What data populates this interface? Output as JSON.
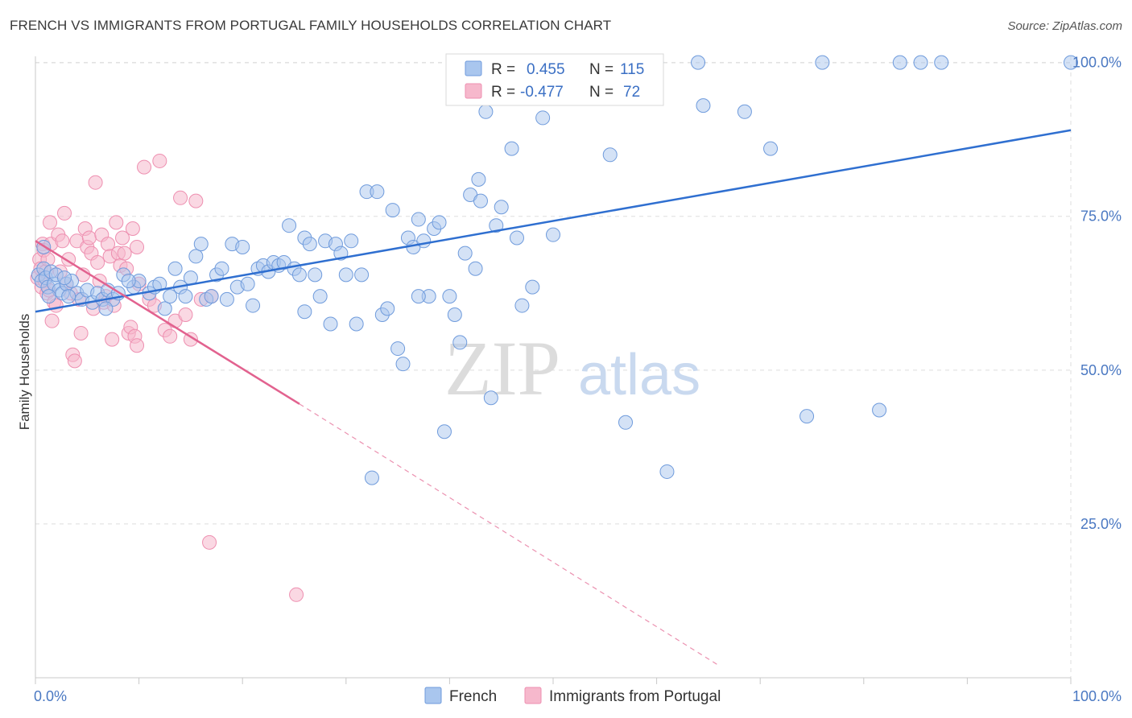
{
  "header": {
    "title": "FRENCH VS IMMIGRANTS FROM PORTUGAL FAMILY HOUSEHOLDS CORRELATION CHART",
    "source": "Source: ZipAtlas.com"
  },
  "watermark": {
    "zip": "ZIP",
    "atlas": "atlas"
  },
  "colors": {
    "french_fill": "#a9c6ee",
    "french_stroke": "#6f9bdc",
    "french_line": "#2f6fd0",
    "portugal_fill": "#f6b8cc",
    "portugal_stroke": "#ee8fb0",
    "portugal_line": "#e2628f",
    "tick_text": "#4a78c2",
    "grid": "#dedede"
  },
  "legend_box": {
    "rows": [
      {
        "r_label": "R =",
        "r_value": "0.455",
        "n_label": "N =",
        "n_value": "115"
      },
      {
        "r_label": "R =",
        "r_value": "-0.477",
        "n_label": "N =",
        "n_value": "72"
      }
    ]
  },
  "bottom_legend": [
    {
      "label": "French"
    },
    {
      "label": "Immigrants from Portugal"
    }
  ],
  "chart_data": {
    "type": "scatter",
    "title": "FRENCH VS IMMIGRANTS FROM PORTUGAL FAMILY HOUSEHOLDS CORRELATION CHART",
    "xlabel": "",
    "ylabel": "Family Households",
    "xlim": [
      0,
      100
    ],
    "ylim": [
      0,
      101
    ],
    "x_tick_labels": [
      "0.0%",
      "100.0%"
    ],
    "y_ticks": [
      25,
      50,
      75,
      100
    ],
    "y_tick_labels": [
      "25.0%",
      "50.0%",
      "75.0%",
      "100.0%"
    ],
    "grid": true,
    "legend_position": "bottom",
    "series": [
      {
        "name": "French",
        "r": 0.455,
        "n": 115,
        "trend": {
          "x": [
            0,
            100
          ],
          "y": [
            59.5,
            89
          ]
        },
        "points": [
          [
            0.3,
            65.5
          ],
          [
            0.6,
            64.5
          ],
          [
            0.8,
            66.5
          ],
          [
            1.0,
            65.0
          ],
          [
            1.2,
            63.5
          ],
          [
            1.5,
            66.0
          ],
          [
            1.8,
            64.0
          ],
          [
            2.0,
            65.5
          ],
          [
            2.3,
            63.0
          ],
          [
            2.6,
            62.5
          ],
          [
            3.0,
            64.0
          ],
          [
            3.5,
            64.5
          ],
          [
            4.0,
            62.5
          ],
          [
            4.5,
            61.5
          ],
          [
            5.0,
            63.0
          ],
          [
            5.5,
            61.0
          ],
          [
            6.0,
            62.5
          ],
          [
            6.5,
            61.5
          ],
          [
            7.0,
            63.0
          ],
          [
            7.5,
            61.5
          ],
          [
            8.0,
            62.5
          ],
          [
            8.5,
            65.5
          ],
          [
            9.5,
            63.5
          ],
          [
            10.0,
            64.5
          ],
          [
            11.0,
            62.5
          ],
          [
            11.5,
            63.5
          ],
          [
            12.0,
            64.0
          ],
          [
            12.5,
            60.0
          ],
          [
            13.0,
            62.0
          ],
          [
            13.5,
            66.5
          ],
          [
            14.0,
            63.5
          ],
          [
            14.5,
            62.0
          ],
          [
            15.0,
            65.0
          ],
          [
            15.5,
            68.5
          ],
          [
            16.0,
            70.5
          ],
          [
            16.5,
            61.5
          ],
          [
            17.0,
            62.0
          ],
          [
            17.5,
            65.5
          ],
          [
            18.0,
            66.5
          ],
          [
            18.5,
            61.5
          ],
          [
            19.0,
            70.5
          ],
          [
            19.5,
            63.5
          ],
          [
            20.0,
            70.0
          ],
          [
            20.5,
            64.0
          ],
          [
            21.0,
            60.5
          ],
          [
            21.5,
            66.5
          ],
          [
            22.0,
            67.0
          ],
          [
            22.5,
            66.0
          ],
          [
            23.0,
            67.5
          ],
          [
            23.5,
            67.0
          ],
          [
            24.0,
            67.5
          ],
          [
            24.5,
            73.5
          ],
          [
            25.0,
            66.5
          ],
          [
            25.5,
            65.5
          ],
          [
            26.0,
            71.5
          ],
          [
            26.5,
            70.5
          ],
          [
            27.0,
            65.5
          ],
          [
            27.5,
            62.0
          ],
          [
            28.0,
            71.0
          ],
          [
            28.5,
            57.5
          ],
          [
            29.0,
            70.5
          ],
          [
            29.5,
            69.0
          ],
          [
            30.0,
            65.5
          ],
          [
            30.5,
            71.0
          ],
          [
            31.0,
            57.5
          ],
          [
            31.5,
            65.5
          ],
          [
            32.0,
            79.0
          ],
          [
            32.5,
            32.5
          ],
          [
            33.0,
            79.0
          ],
          [
            33.5,
            59.0
          ],
          [
            34.0,
            60.0
          ],
          [
            34.5,
            76.0
          ],
          [
            35.0,
            53.5
          ],
          [
            35.5,
            51.0
          ],
          [
            36.0,
            71.5
          ],
          [
            36.5,
            70.0
          ],
          [
            37.0,
            74.5
          ],
          [
            37.5,
            71.0
          ],
          [
            38.0,
            62.0
          ],
          [
            38.5,
            73.0
          ],
          [
            39.0,
            74.0
          ],
          [
            39.5,
            40.0
          ],
          [
            40.0,
            62.0
          ],
          [
            40.5,
            59.0
          ],
          [
            41.0,
            54.5
          ],
          [
            41.5,
            69.0
          ],
          [
            42.0,
            78.5
          ],
          [
            42.5,
            66.5
          ],
          [
            42.8,
            81.0
          ],
          [
            43.0,
            77.5
          ],
          [
            43.5,
            92.0
          ],
          [
            44.0,
            45.5
          ],
          [
            44.5,
            73.5
          ],
          [
            45.0,
            76.5
          ],
          [
            46.0,
            86.0
          ],
          [
            46.5,
            71.5
          ],
          [
            47.0,
            60.5
          ],
          [
            48.0,
            63.5
          ],
          [
            49.0,
            91.0
          ],
          [
            50.0,
            72.0
          ],
          [
            50.5,
            100.0
          ],
          [
            53.5,
            100.0
          ],
          [
            55.5,
            85.0
          ],
          [
            57.0,
            41.5
          ],
          [
            60.0,
            100.0
          ],
          [
            61.0,
            33.5
          ],
          [
            64.0,
            100.0
          ],
          [
            64.5,
            93.0
          ],
          [
            68.5,
            92.0
          ],
          [
            71.0,
            86.0
          ],
          [
            74.5,
            42.5
          ],
          [
            76.0,
            100.0
          ],
          [
            81.5,
            43.5
          ],
          [
            83.5,
            100.0
          ],
          [
            85.5,
            100.0
          ],
          [
            87.5,
            100.0
          ],
          [
            100.0,
            100.0
          ],
          [
            0.8,
            70.0
          ],
          [
            1.3,
            62.0
          ],
          [
            2.8,
            65.0
          ],
          [
            3.2,
            62.0
          ],
          [
            6.8,
            60.0
          ],
          [
            9.0,
            64.5
          ],
          [
            26.0,
            59.5
          ],
          [
            37.0,
            62.0
          ]
        ]
      },
      {
        "name": "Immigrants from Portugal",
        "r": -0.477,
        "n": 72,
        "trend": {
          "x": [
            0,
            25.5
          ],
          "y": [
            71,
            44.5
          ],
          "dashed_extension": {
            "x": [
              25.5,
              66
            ],
            "y": [
              44.5,
              2
            ]
          }
        },
        "points": [
          [
            0.2,
            65.0
          ],
          [
            0.4,
            68.0
          ],
          [
            0.5,
            66.5
          ],
          [
            0.6,
            63.5
          ],
          [
            0.7,
            70.5
          ],
          [
            0.8,
            69.5
          ],
          [
            0.9,
            64.5
          ],
          [
            1.0,
            66.0
          ],
          [
            1.1,
            62.5
          ],
          [
            1.2,
            68.0
          ],
          [
            1.3,
            63.0
          ],
          [
            1.4,
            74.0
          ],
          [
            1.5,
            70.5
          ],
          [
            1.6,
            58.0
          ],
          [
            1.8,
            61.0
          ],
          [
            2.0,
            60.5
          ],
          [
            2.2,
            72.0
          ],
          [
            2.4,
            66.0
          ],
          [
            2.6,
            71.0
          ],
          [
            2.8,
            75.5
          ],
          [
            3.0,
            64.0
          ],
          [
            3.2,
            68.0
          ],
          [
            3.4,
            62.5
          ],
          [
            3.6,
            52.5
          ],
          [
            3.8,
            51.5
          ],
          [
            4.0,
            71.0
          ],
          [
            4.2,
            61.5
          ],
          [
            4.4,
            56.0
          ],
          [
            4.6,
            65.5
          ],
          [
            4.8,
            73.0
          ],
          [
            5.0,
            70.0
          ],
          [
            5.2,
            71.5
          ],
          [
            5.4,
            69.0
          ],
          [
            5.6,
            60.0
          ],
          [
            5.8,
            80.5
          ],
          [
            6.0,
            67.5
          ],
          [
            6.2,
            64.5
          ],
          [
            6.4,
            72.0
          ],
          [
            6.6,
            61.0
          ],
          [
            6.8,
            62.0
          ],
          [
            7.0,
            70.5
          ],
          [
            7.2,
            68.5
          ],
          [
            7.4,
            55.0
          ],
          [
            7.6,
            60.5
          ],
          [
            7.8,
            74.0
          ],
          [
            8.0,
            69.0
          ],
          [
            8.2,
            67.0
          ],
          [
            8.4,
            71.5
          ],
          [
            8.6,
            69.0
          ],
          [
            8.8,
            66.5
          ],
          [
            9.0,
            56.0
          ],
          [
            9.2,
            57.0
          ],
          [
            9.4,
            73.0
          ],
          [
            9.6,
            55.5
          ],
          [
            9.8,
            70.0
          ],
          [
            10.0,
            64.0
          ],
          [
            10.5,
            83.0
          ],
          [
            11.0,
            61.5
          ],
          [
            11.5,
            60.5
          ],
          [
            12.0,
            84.0
          ],
          [
            12.5,
            56.5
          ],
          [
            13.0,
            55.5
          ],
          [
            13.5,
            58.0
          ],
          [
            14.0,
            78.0
          ],
          [
            14.5,
            59.0
          ],
          [
            15.0,
            55.0
          ],
          [
            15.5,
            77.5
          ],
          [
            16.0,
            61.5
          ],
          [
            17.0,
            62.0
          ],
          [
            16.8,
            22.0
          ],
          [
            25.2,
            13.5
          ],
          [
            9.8,
            54.0
          ]
        ]
      }
    ]
  }
}
